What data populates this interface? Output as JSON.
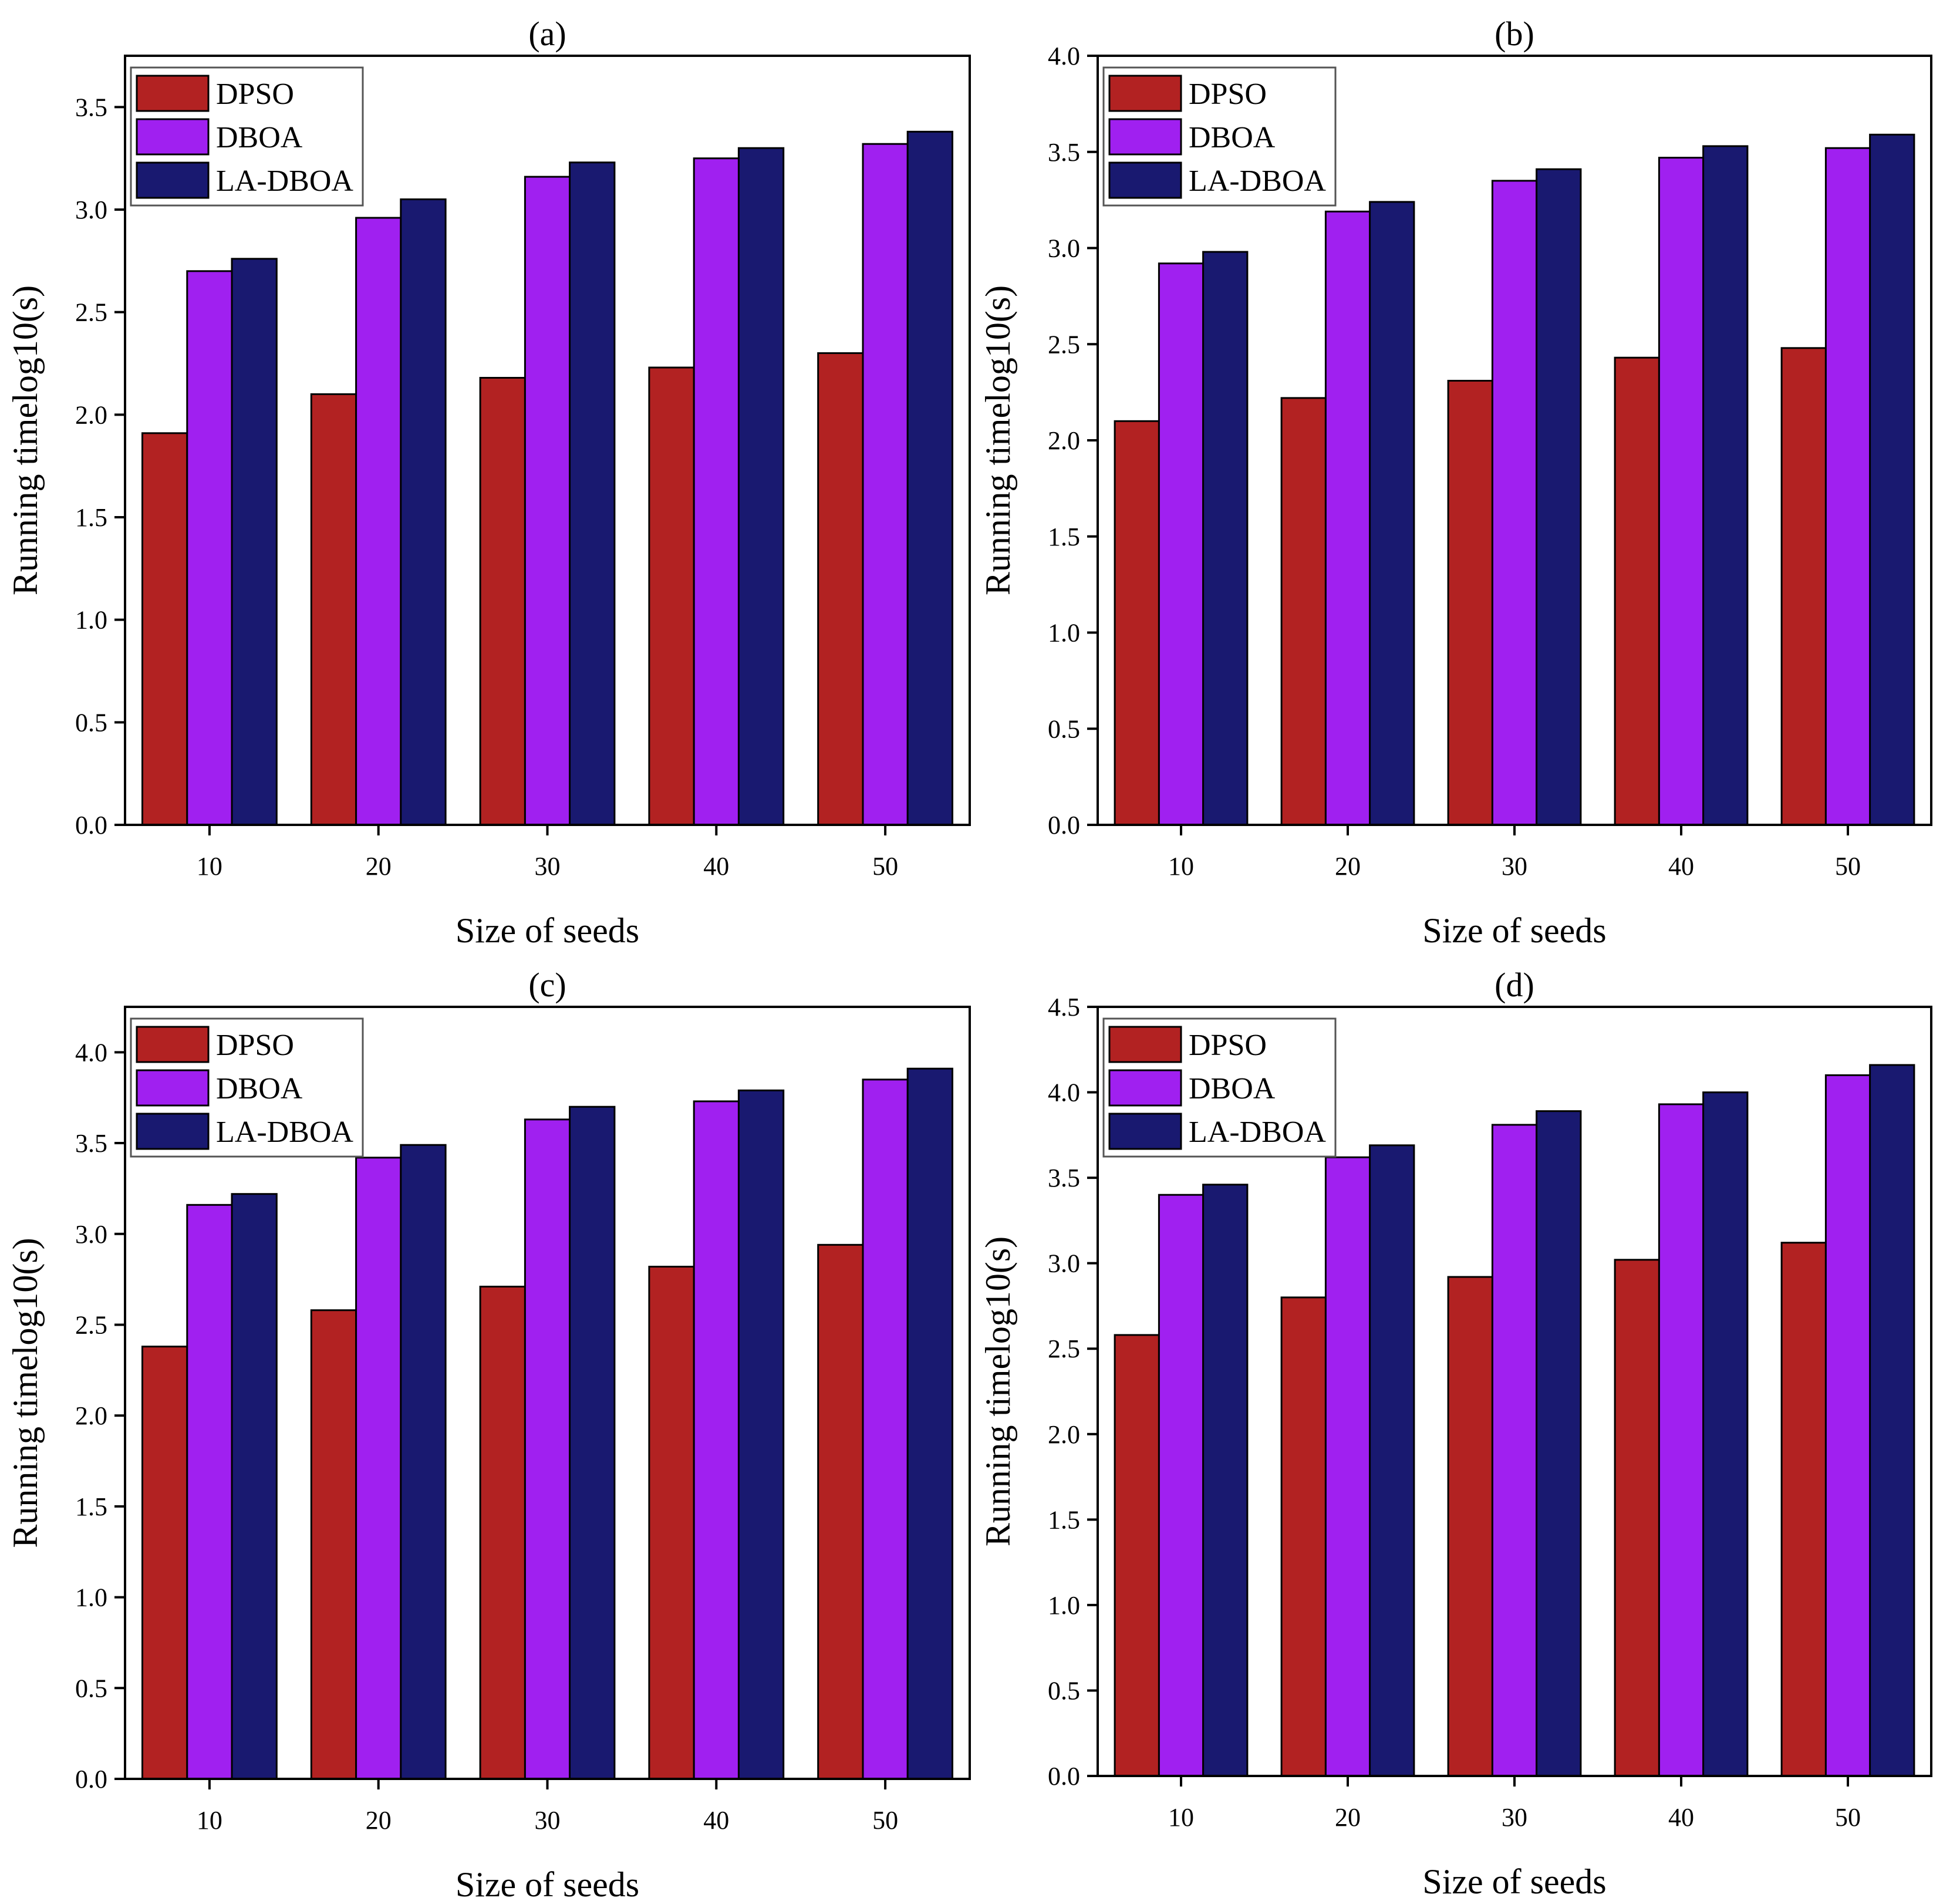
{
  "figure": {
    "background": "#ffffff"
  },
  "chart_data": [
    {
      "type": "bar",
      "title": "(a)",
      "xlabel": "Size of seeds",
      "ylabel": "Running timelog10(s)",
      "categories": [
        "10",
        "20",
        "30",
        "40",
        "50"
      ],
      "ylim": [
        0,
        3.75
      ],
      "yticks": [
        "0.0",
        "0.5",
        "1.0",
        "1.5",
        "2.0",
        "2.5",
        "3.0",
        "3.5"
      ],
      "grid": false,
      "legend_position": "top-left",
      "series": [
        {
          "name": "DPSO",
          "color": "#b22222",
          "values": [
            1.91,
            2.1,
            2.18,
            2.23,
            2.3
          ]
        },
        {
          "name": "DBOA",
          "color": "#a020f0",
          "values": [
            2.7,
            2.96,
            3.16,
            3.25,
            3.32
          ]
        },
        {
          "name": "LA-DBOA",
          "color": "#191970",
          "values": [
            2.76,
            3.05,
            3.23,
            3.3,
            3.38
          ]
        }
      ]
    },
    {
      "type": "bar",
      "title": "(b)",
      "xlabel": "Size of seeds",
      "ylabel": "Running timelog10(s)",
      "categories": [
        "10",
        "20",
        "30",
        "40",
        "50"
      ],
      "ylim": [
        0,
        4.0
      ],
      "yticks": [
        "0.0",
        "0.5",
        "1.0",
        "1.5",
        "2.0",
        "2.5",
        "3.0",
        "3.5",
        "4.0"
      ],
      "grid": false,
      "legend_position": "top-left",
      "series": [
        {
          "name": "DPSO",
          "color": "#b22222",
          "values": [
            2.1,
            2.22,
            2.31,
            2.43,
            2.48
          ]
        },
        {
          "name": "DBOA",
          "color": "#a020f0",
          "values": [
            2.92,
            3.19,
            3.35,
            3.47,
            3.52
          ]
        },
        {
          "name": "LA-DBOA",
          "color": "#191970",
          "values": [
            2.98,
            3.24,
            3.41,
            3.53,
            3.59
          ]
        }
      ]
    },
    {
      "type": "bar",
      "title": "(c)",
      "xlabel": "Size of seeds",
      "ylabel": "Running timelog10(s)",
      "categories": [
        "10",
        "20",
        "30",
        "40",
        "50"
      ],
      "ylim": [
        0,
        4.25
      ],
      "yticks": [
        "0.0",
        "0.5",
        "1.0",
        "1.5",
        "2.0",
        "2.5",
        "3.0",
        "3.5",
        "4.0"
      ],
      "grid": false,
      "legend_position": "top-left",
      "series": [
        {
          "name": "DPSO",
          "color": "#b22222",
          "values": [
            2.38,
            2.58,
            2.71,
            2.82,
            2.94
          ]
        },
        {
          "name": "DBOA",
          "color": "#a020f0",
          "values": [
            3.16,
            3.42,
            3.63,
            3.73,
            3.85
          ]
        },
        {
          "name": "LA-DBOA",
          "color": "#191970",
          "values": [
            3.22,
            3.49,
            3.7,
            3.79,
            3.91
          ]
        }
      ]
    },
    {
      "type": "bar",
      "title": "(d)",
      "xlabel": "Size of seeds",
      "ylabel": "Running timelog10(s)",
      "categories": [
        "10",
        "20",
        "30",
        "40",
        "50"
      ],
      "ylim": [
        0,
        4.5
      ],
      "yticks": [
        "0.0",
        "0.5",
        "1.0",
        "1.5",
        "2.0",
        "2.5",
        "3.0",
        "3.5",
        "4.0",
        "4.5"
      ],
      "grid": false,
      "legend_position": "top-left",
      "series": [
        {
          "name": "DPSO",
          "color": "#b22222",
          "values": [
            2.58,
            2.8,
            2.92,
            3.02,
            3.12
          ]
        },
        {
          "name": "DBOA",
          "color": "#a020f0",
          "values": [
            3.4,
            3.62,
            3.81,
            3.93,
            4.1
          ]
        },
        {
          "name": "LA-DBOA",
          "color": "#191970",
          "values": [
            3.46,
            3.69,
            3.89,
            4.0,
            4.16
          ]
        }
      ]
    }
  ]
}
